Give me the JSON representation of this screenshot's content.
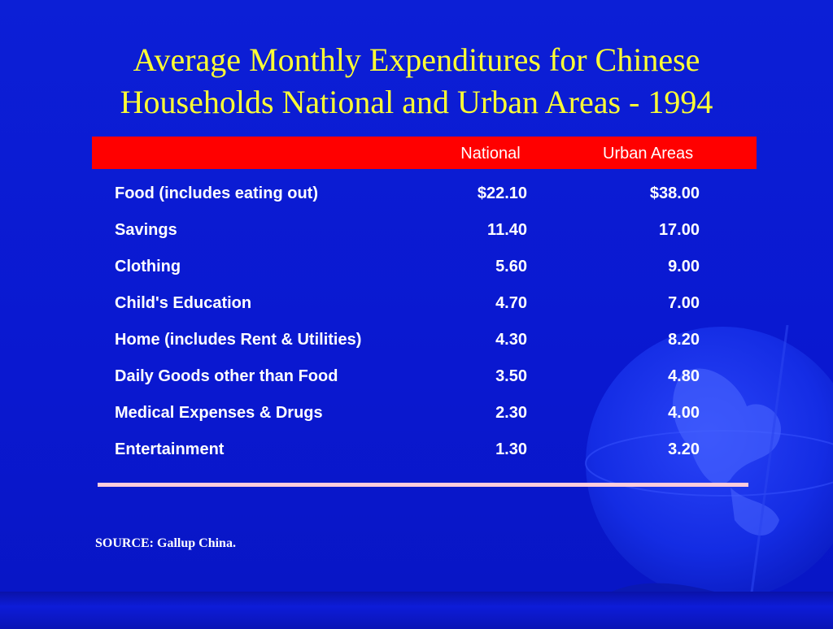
{
  "title": {
    "line1": "Average Monthly Expenditures for Chinese",
    "line2": "Households National and Urban Areas - 1994"
  },
  "columns": [
    "",
    "National",
    "Urban Areas"
  ],
  "chart_data": {
    "type": "table",
    "title": "Average Monthly Expenditures for Chinese Households National and Urban Areas - 1994",
    "columns": [
      "",
      "National",
      "Urban Areas"
    ],
    "rows": [
      {
        "label": "Food (includes eating out)",
        "national": "$22.10",
        "urban": "$38.00"
      },
      {
        "label": "Savings",
        "national": "11.40",
        "urban": "17.00"
      },
      {
        "label": "Clothing",
        "national": "5.60",
        "urban": "9.00"
      },
      {
        "label": "Child's Education",
        "national": "4.70",
        "urban": "7.00"
      },
      {
        "label": "Home (includes Rent & Utilities)",
        "national": "4.30",
        "urban": "8.20"
      },
      {
        "label": "Daily Goods other than Food",
        "national": "3.50",
        "urban": "4.80"
      },
      {
        "label": "Medical Expenses & Drugs",
        "national": "2.30",
        "urban": "4.00"
      },
      {
        "label": "Entertainment",
        "national": "1.30",
        "urban": "3.20"
      }
    ]
  },
  "source": "SOURCE: Gallup China.",
  "colors": {
    "background": "#0c1fd6",
    "title": "#ffff33",
    "header_bar": "#ff0000",
    "text": "#ffffff",
    "divider": "#ffccdd"
  },
  "decorations": {
    "globe": "globe-icon"
  }
}
